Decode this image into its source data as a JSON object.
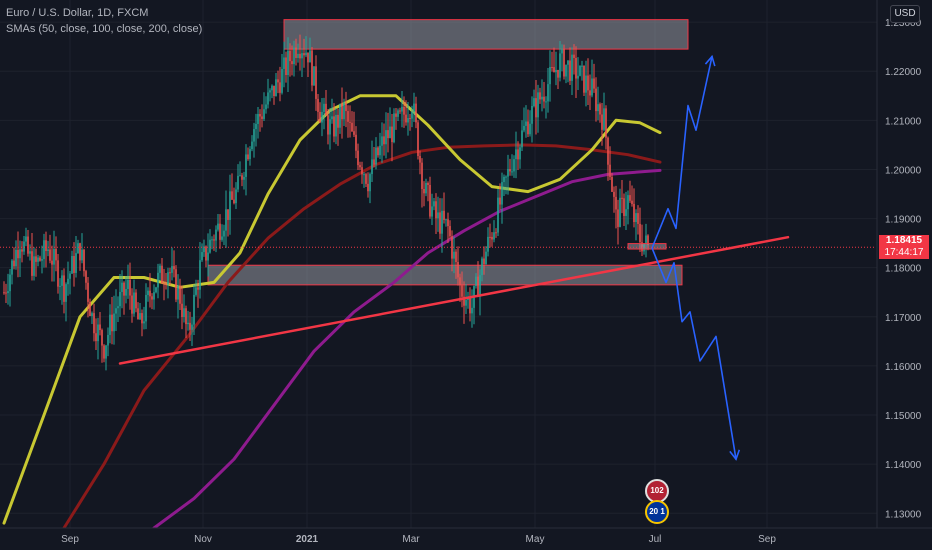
{
  "legend": {
    "symbol": "Euro / U.S. Dollar, 1D, FXCM",
    "indicator": "SMAs (50, close, 100, close, 200, close)"
  },
  "axis": {
    "currency": "USD",
    "price_labels": [
      "1.23000",
      "1.22000",
      "1.21000",
      "1.20000",
      "1.19000",
      "1.18000",
      "1.17000",
      "1.16000",
      "1.15000",
      "1.14000",
      "1.13000"
    ],
    "time_labels": [
      "Sep",
      "Nov",
      "2021",
      "Mar",
      "May",
      "Jul",
      "Sep"
    ],
    "current_price": "1.18415",
    "countdown": "17:44:17"
  },
  "events": [
    {
      "label": "102",
      "flag": "us-flag-icon"
    },
    {
      "label": "20 1",
      "flag": "eu-flag-icon"
    }
  ],
  "colors": {
    "background": "#131722",
    "up": "#26a69a",
    "down": "#ef5350",
    "sma50": "#c8c832",
    "sma100": "#8b1a1a",
    "sma200": "#8e1b8e",
    "trendline": "#f23645",
    "projection": "#2962ff"
  },
  "chart_data": {
    "type": "candlestick",
    "ylim": [
      1.127,
      1.2345
    ],
    "yticks": [
      1.23,
      1.22,
      1.21,
      1.2,
      1.19,
      1.18,
      1.17,
      1.16,
      1.15,
      1.14,
      1.13
    ],
    "xticks": [
      "Sep",
      "Nov",
      "2021",
      "Mar",
      "May",
      "Jul",
      "Sep"
    ],
    "close_path": [
      {
        "t": 0,
        "p": 1.175
      },
      {
        "t": 8,
        "p": 1.186
      },
      {
        "t": 15,
        "p": 1.18
      },
      {
        "t": 22,
        "p": 1.184
      },
      {
        "t": 30,
        "p": 1.176
      },
      {
        "t": 38,
        "p": 1.184
      },
      {
        "t": 44,
        "p": 1.17
      },
      {
        "t": 50,
        "p": 1.164
      },
      {
        "t": 56,
        "p": 1.172
      },
      {
        "t": 62,
        "p": 1.176
      },
      {
        "t": 68,
        "p": 1.168
      },
      {
        "t": 74,
        "p": 1.176
      },
      {
        "t": 82,
        "p": 1.18
      },
      {
        "t": 88,
        "p": 1.174
      },
      {
        "t": 92,
        "p": 1.166
      },
      {
        "t": 98,
        "p": 1.18
      },
      {
        "t": 104,
        "p": 1.186
      },
      {
        "t": 110,
        "p": 1.19
      },
      {
        "t": 117,
        "p": 1.196
      },
      {
        "t": 124,
        "p": 1.208
      },
      {
        "t": 132,
        "p": 1.214
      },
      {
        "t": 140,
        "p": 1.22
      },
      {
        "t": 147,
        "p": 1.226
      },
      {
        "t": 152,
        "p": 1.224
      },
      {
        "t": 158,
        "p": 1.212
      },
      {
        "t": 164,
        "p": 1.208
      },
      {
        "t": 170,
        "p": 1.212
      },
      {
        "t": 176,
        "p": 1.204
      },
      {
        "t": 182,
        "p": 1.198
      },
      {
        "t": 190,
        "p": 1.206
      },
      {
        "t": 198,
        "p": 1.21
      },
      {
        "t": 204,
        "p": 1.214
      },
      {
        "t": 210,
        "p": 1.196
      },
      {
        "t": 216,
        "p": 1.19
      },
      {
        "t": 222,
        "p": 1.188
      },
      {
        "t": 228,
        "p": 1.176
      },
      {
        "t": 234,
        "p": 1.172
      },
      {
        "t": 240,
        "p": 1.182
      },
      {
        "t": 246,
        "p": 1.19
      },
      {
        "t": 254,
        "p": 1.202
      },
      {
        "t": 262,
        "p": 1.21
      },
      {
        "t": 270,
        "p": 1.216
      },
      {
        "t": 278,
        "p": 1.222
      },
      {
        "t": 286,
        "p": 1.22
      },
      {
        "t": 294,
        "p": 1.216
      },
      {
        "t": 300,
        "p": 1.21
      },
      {
        "t": 306,
        "p": 1.19
      },
      {
        "t": 312,
        "p": 1.194
      },
      {
        "t": 318,
        "p": 1.186
      },
      {
        "t": 322,
        "p": 1.1841
      }
    ],
    "sma50": [
      {
        "t": 0,
        "p": 1.128
      },
      {
        "t": 20,
        "p": 1.15
      },
      {
        "t": 38,
        "p": 1.17
      },
      {
        "t": 55,
        "p": 1.178
      },
      {
        "t": 70,
        "p": 1.178
      },
      {
        "t": 88,
        "p": 1.176
      },
      {
        "t": 105,
        "p": 1.177
      },
      {
        "t": 118,
        "p": 1.183
      },
      {
        "t": 132,
        "p": 1.195
      },
      {
        "t": 148,
        "p": 1.206
      },
      {
        "t": 163,
        "p": 1.212
      },
      {
        "t": 178,
        "p": 1.215
      },
      {
        "t": 196,
        "p": 1.215
      },
      {
        "t": 212,
        "p": 1.209
      },
      {
        "t": 228,
        "p": 1.202
      },
      {
        "t": 244,
        "p": 1.1965
      },
      {
        "t": 262,
        "p": 1.1955
      },
      {
        "t": 278,
        "p": 1.198
      },
      {
        "t": 294,
        "p": 1.204
      },
      {
        "t": 306,
        "p": 1.21
      },
      {
        "t": 318,
        "p": 1.2095
      },
      {
        "t": 328,
        "p": 1.2075
      }
    ],
    "sma100": [
      {
        "t": 30,
        "p": 1.127
      },
      {
        "t": 50,
        "p": 1.14
      },
      {
        "t": 70,
        "p": 1.155
      },
      {
        "t": 92,
        "p": 1.166
      },
      {
        "t": 112,
        "p": 1.177
      },
      {
        "t": 132,
        "p": 1.186
      },
      {
        "t": 150,
        "p": 1.192
      },
      {
        "t": 168,
        "p": 1.197
      },
      {
        "t": 186,
        "p": 1.201
      },
      {
        "t": 204,
        "p": 1.2035
      },
      {
        "t": 222,
        "p": 1.2045
      },
      {
        "t": 240,
        "p": 1.2048
      },
      {
        "t": 258,
        "p": 1.205
      },
      {
        "t": 276,
        "p": 1.2048
      },
      {
        "t": 294,
        "p": 1.204
      },
      {
        "t": 312,
        "p": 1.203
      },
      {
        "t": 328,
        "p": 1.2015
      }
    ],
    "sma200": [
      {
        "t": 75,
        "p": 1.127
      },
      {
        "t": 95,
        "p": 1.133
      },
      {
        "t": 115,
        "p": 1.141
      },
      {
        "t": 135,
        "p": 1.152
      },
      {
        "t": 155,
        "p": 1.163
      },
      {
        "t": 175,
        "p": 1.171
      },
      {
        "t": 195,
        "p": 1.177
      },
      {
        "t": 212,
        "p": 1.183
      },
      {
        "t": 230,
        "p": 1.1875
      },
      {
        "t": 248,
        "p": 1.1915
      },
      {
        "t": 266,
        "p": 1.1945
      },
      {
        "t": 284,
        "p": 1.1975
      },
      {
        "t": 302,
        "p": 1.199
      },
      {
        "t": 318,
        "p": 1.1995
      },
      {
        "t": 328,
        "p": 1.1998
      }
    ],
    "zones": [
      {
        "t1": 140,
        "t2": 342,
        "p1": 1.2245,
        "p2": 1.2305
      },
      {
        "t1": 102,
        "t2": 339,
        "p1": 1.1765,
        "p2": 1.1805
      }
    ],
    "trendline": [
      {
        "t": 58,
        "p": 1.1605
      },
      {
        "t": 392,
        "p": 1.1862
      }
    ],
    "small_box": {
      "t1": 312,
      "t2": 331,
      "p1": 1.184,
      "p2": 1.1847
    },
    "projection_up": [
      {
        "t": 324,
        "p": 1.184
      },
      {
        "t": 332,
        "p": 1.192
      },
      {
        "t": 336,
        "p": 1.188
      },
      {
        "t": 342,
        "p": 1.213
      },
      {
        "t": 346,
        "p": 1.208
      },
      {
        "t": 354,
        "p": 1.223
      }
    ],
    "projection_down": [
      {
        "t": 324,
        "p": 1.184
      },
      {
        "t": 331,
        "p": 1.177
      },
      {
        "t": 335,
        "p": 1.181
      },
      {
        "t": 339,
        "p": 1.169
      },
      {
        "t": 343,
        "p": 1.171
      },
      {
        "t": 348,
        "p": 1.161
      },
      {
        "t": 356,
        "p": 1.166
      },
      {
        "t": 366,
        "p": 1.141
      }
    ]
  }
}
